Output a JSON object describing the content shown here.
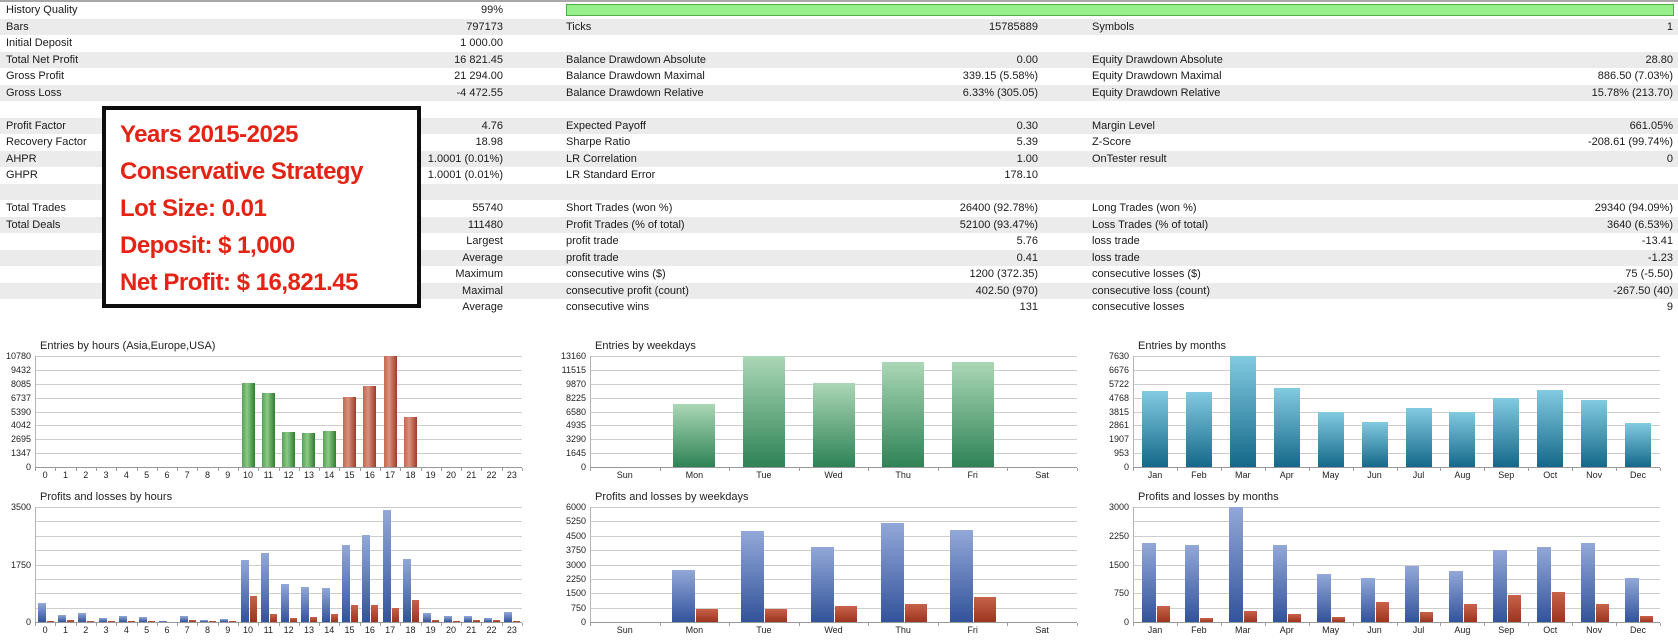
{
  "colors": {
    "row_stripe": "#ebebeb",
    "quality_fill": "#97ef8c",
    "quality_border": "#4fae47",
    "annotation_red": "#e42315",
    "grid": "#cdcdcd",
    "bar_green": "#2e7d2e",
    "bar_red": "#9d3a26",
    "bar_green_gradient": "#2e8356",
    "bar_teal": "#15688a",
    "bar_blue": "#32539b",
    "bar_loss_red": "#9c341f"
  },
  "table": {
    "rows": [
      {
        "c1l": "History Quality",
        "c1v": "99%",
        "c2l": "",
        "c2v": "",
        "c3l": "",
        "c3v": "",
        "progress": true
      },
      {
        "c1l": "Bars",
        "c1v": "797173",
        "c2l": "Ticks",
        "c2v": "15785889",
        "c3l": "Symbols",
        "c3v": "1"
      },
      {
        "c1l": "Initial Deposit",
        "c1v": "1 000.00",
        "c2l": "",
        "c2v": "",
        "c3l": "",
        "c3v": ""
      },
      {
        "c1l": "Total Net Profit",
        "c1v": "16 821.45",
        "c2l": "Balance Drawdown Absolute",
        "c2v": "0.00",
        "c3l": "Equity Drawdown Absolute",
        "c3v": "28.80"
      },
      {
        "c1l": "Gross Profit",
        "c1v": "21 294.00",
        "c2l": "Balance Drawdown Maximal",
        "c2v": "339.15 (5.58%)",
        "c3l": "Equity Drawdown Maximal",
        "c3v": "886.50 (7.03%)"
      },
      {
        "c1l": "Gross Loss",
        "c1v": "-4 472.55",
        "c2l": "Balance Drawdown Relative",
        "c2v": "6.33% (305.05)",
        "c3l": "Equity Drawdown Relative",
        "c3v": "15.78% (213.70)"
      },
      {
        "c1l": "",
        "c1v": "",
        "c2l": "",
        "c2v": "",
        "c3l": "",
        "c3v": ""
      },
      {
        "c1l": "Profit Factor",
        "c1v": "4.76",
        "c2l": "Expected Payoff",
        "c2v": "0.30",
        "c3l": "Margin Level",
        "c3v": "661.05%"
      },
      {
        "c1l": "Recovery Factor",
        "c1v": "18.98",
        "c2l": "Sharpe Ratio",
        "c2v": "5.39",
        "c3l": "Z-Score",
        "c3v": "-208.61 (99.74%)"
      },
      {
        "c1l": "AHPR",
        "c1v": "1.0001 (0.01%)",
        "c2l": "LR Correlation",
        "c2v": "1.00",
        "c3l": "OnTester result",
        "c3v": "0"
      },
      {
        "c1l": "GHPR",
        "c1v": "1.0001 (0.01%)",
        "c2l": "LR Standard Error",
        "c2v": "178.10",
        "c3l": "",
        "c3v": ""
      },
      {
        "c1l": "",
        "c1v": "",
        "c2l": "",
        "c2v": "",
        "c3l": "",
        "c3v": ""
      },
      {
        "c1l": "Total Trades",
        "c1v": "55740",
        "c2l": "Short Trades (won %)",
        "c2v": "26400 (92.78%)",
        "c3l": "Long Trades (won %)",
        "c3v": "29340 (94.09%)"
      },
      {
        "c1l": "Total Deals",
        "c1v": "111480",
        "c2l": "Profit Trades (% of total)",
        "c2v": "52100 (93.47%)",
        "c3l": "Loss Trades (% of total)",
        "c3v": "3640 (6.53%)"
      },
      {
        "c1l": "",
        "c1v": "Largest",
        "c2l": "profit trade",
        "c2v": "5.76",
        "c3l": "loss trade",
        "c3v": "-13.41"
      },
      {
        "c1l": "",
        "c1v": "Average",
        "c2l": "profit trade",
        "c2v": "0.41",
        "c3l": "loss trade",
        "c3v": "-1.23"
      },
      {
        "c1l": "",
        "c1v": "Maximum",
        "c2l": "consecutive wins ($)",
        "c2v": "1200 (372.35)",
        "c3l": "consecutive losses ($)",
        "c3v": "75 (-5.50)"
      },
      {
        "c1l": "",
        "c1v": "Maximal",
        "c2l": "consecutive profit (count)",
        "c2v": "402.50 (970)",
        "c3l": "consecutive loss (count)",
        "c3v": "-267.50 (40)"
      },
      {
        "c1l": "",
        "c1v": "Average",
        "c2l": "consecutive wins",
        "c2v": "131",
        "c3l": "consecutive losses",
        "c3v": "9"
      }
    ]
  },
  "annotation": {
    "lines": [
      "Years 2015-2025",
      "Conservative Strategy",
      "Lot Size: 0.01",
      "Deposit: $ 1,000",
      "Net Profit: $ 16,821.45"
    ]
  },
  "chart_data": [
    {
      "type": "bar",
      "title": "Entries by hours (Asia,Europe,USA)",
      "categories": [
        "0",
        "1",
        "2",
        "3",
        "4",
        "5",
        "6",
        "7",
        "8",
        "9",
        "10",
        "11",
        "12",
        "13",
        "14",
        "15",
        "16",
        "17",
        "18",
        "19",
        "20",
        "21",
        "22",
        "23"
      ],
      "ymax": 10780,
      "ylim": [
        0,
        10780
      ],
      "grid": true,
      "yticks": [
        "10780",
        "9432",
        "8085",
        "6737",
        "5390",
        "4042",
        "2695",
        "1347",
        "0"
      ],
      "series": [
        {
          "name": "entries",
          "color": "green",
          "values": [
            0,
            0,
            0,
            0,
            0,
            0,
            0,
            0,
            0,
            0,
            8150,
            7200,
            3400,
            3300,
            3500,
            6800,
            7850,
            10780,
            4850,
            0,
            0,
            0,
            0,
            0
          ],
          "value_colors": [
            null,
            null,
            null,
            null,
            null,
            null,
            null,
            null,
            null,
            null,
            "green",
            "green",
            "green",
            "green",
            "green",
            "red_h",
            "red_h",
            "red_h",
            "red_h",
            null,
            null,
            null,
            null,
            null
          ]
        }
      ]
    },
    {
      "type": "bar",
      "title": "Entries by weekdays",
      "categories": [
        "Sun",
        "Mon",
        "Tue",
        "Wed",
        "Thu",
        "Fri",
        "Sat"
      ],
      "ymax": 13160,
      "ylim": [
        0,
        13160
      ],
      "grid": true,
      "yticks": [
        "13160",
        "11515",
        "9870",
        "8225",
        "6580",
        "4935",
        "3290",
        "1645",
        "0"
      ],
      "series": [
        {
          "name": "entries",
          "color": "green_v",
          "values": [
            0,
            7500,
            13160,
            9950,
            12500,
            12500,
            0
          ]
        }
      ]
    },
    {
      "type": "bar",
      "title": "Entries by months",
      "categories": [
        "Jan",
        "Feb",
        "Mar",
        "Apr",
        "May",
        "Jun",
        "Jul",
        "Aug",
        "Sep",
        "Oct",
        "Nov",
        "Dec"
      ],
      "ymax": 7630,
      "ylim": [
        0,
        7630
      ],
      "grid": true,
      "yticks": [
        "7630",
        "6676",
        "5722",
        "4768",
        "3815",
        "2861",
        "1907",
        "953",
        "0"
      ],
      "series": [
        {
          "name": "entries",
          "color": "teal",
          "values": [
            5250,
            5150,
            7630,
            5450,
            3815,
            3130,
            4090,
            3800,
            4770,
            5310,
            4630,
            3060
          ]
        }
      ]
    },
    {
      "type": "bar",
      "title": "Profits and losses by hours",
      "categories": [
        "0",
        "1",
        "2",
        "3",
        "4",
        "5",
        "6",
        "7",
        "8",
        "9",
        "10",
        "11",
        "12",
        "13",
        "14",
        "15",
        "16",
        "17",
        "18",
        "19",
        "20",
        "21",
        "22",
        "23"
      ],
      "ymax": 3500,
      "ylim": [
        0,
        3500
      ],
      "grid": true,
      "yticks": [
        "3500",
        "",
        "",
        "",
        "1750",
        "",
        "",
        "",
        "0"
      ],
      "series": [
        {
          "name": "profit",
          "color": "blue",
          "values": [
            570,
            210,
            270,
            130,
            180,
            160,
            30,
            190,
            70,
            90,
            1880,
            2100,
            1160,
            1080,
            1050,
            2340,
            2660,
            3400,
            1910,
            280,
            190,
            190,
            130,
            310
          ]
        },
        {
          "name": "loss",
          "color": "red_v",
          "values": [
            30,
            60,
            35,
            35,
            40,
            45,
            10,
            70,
            30,
            45,
            780,
            240,
            120,
            150,
            240,
            510,
            530,
            430,
            660,
            55,
            35,
            55,
            65,
            25
          ]
        }
      ]
    },
    {
      "type": "bar",
      "title": "Profits and losses by weekdays",
      "categories": [
        "Sun",
        "Mon",
        "Tue",
        "Wed",
        "Thu",
        "Fri",
        "Sat"
      ],
      "ymax": 6000,
      "ylim": [
        0,
        6000
      ],
      "grid": true,
      "yticks": [
        "6000",
        "5250",
        "4500",
        "3750",
        "3000",
        "2250",
        "1500",
        "750",
        "0"
      ],
      "series": [
        {
          "name": "profit",
          "color": "blue",
          "values": [
            0,
            2700,
            4750,
            3900,
            5150,
            4800,
            0
          ]
        },
        {
          "name": "loss",
          "color": "red_v",
          "values": [
            0,
            700,
            700,
            820,
            930,
            1300,
            0
          ]
        }
      ]
    },
    {
      "type": "bar",
      "title": "Profits and losses by months",
      "categories": [
        "Jan",
        "Feb",
        "Mar",
        "Apr",
        "May",
        "Jun",
        "Jul",
        "Aug",
        "Sep",
        "Oct",
        "Nov",
        "Dec"
      ],
      "ymax": 3000,
      "ylim": [
        0,
        3000
      ],
      "grid": true,
      "yticks": [
        "3000",
        "",
        "2250",
        "",
        "1500",
        "",
        "750",
        "",
        "0"
      ],
      "series": [
        {
          "name": "profit",
          "color": "blue",
          "values": [
            2050,
            2000,
            3000,
            2020,
            1260,
            1160,
            1460,
            1340,
            1870,
            1950,
            2050,
            1150
          ]
        },
        {
          "name": "loss",
          "color": "red_v",
          "values": [
            420,
            110,
            300,
            210,
            130,
            530,
            250,
            480,
            710,
            780,
            480,
            160
          ]
        }
      ]
    }
  ]
}
